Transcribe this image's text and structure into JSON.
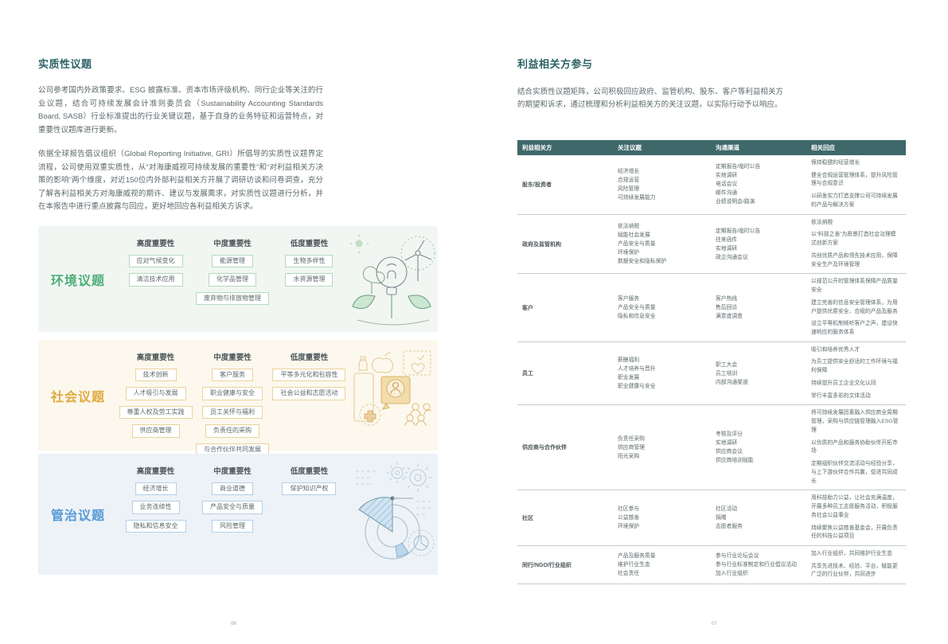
{
  "left_page": {
    "title": "实质性议题",
    "para1": "公司参考国内外政策要求、ESG 披露标准、资本市场评级机构、同行企业等关注的行业议题，结合可持续发展会计准则委员会（Sustainability Accounting Standards Board, SASB）行业标准提出的行业关键议题，基于自身的业务特征和运营特点，对重要性议题库进行更新。",
    "para2": "依据全球报告倡议组织（Global Reporting Initiative, GRI）所倡导的实质性议题界定流程，公司使用双重实质性，从“对海康威视可持续发展的重要性”和“对利益相关方决策的影响”两个维度，对近150位内外部利益相关方开展了调研访谈和问卷调查，充分了解各利益相关方对海康威视的期许、建议与发展需求，对实质性议题进行分析，并在本报告中进行重点披露与回应，更好地回应各利益相关方诉求。",
    "col_headers": [
      "高度重要性",
      "中度重要性",
      "低度重要性"
    ],
    "boxes": [
      {
        "key": "environment",
        "label": "环境议题",
        "accent": "#4caf79",
        "bg": "#f2f6f2",
        "chip_border": "#b2d9c0",
        "cols": [
          [
            "应对气候变化",
            "清洁技术应用"
          ],
          [
            "能源管理",
            "化学品管理",
            "废弃物与排放物管理"
          ],
          [
            "生物多样性",
            "水资源管理"
          ]
        ]
      },
      {
        "key": "social",
        "label": "社会议题",
        "accent": "#e0a93e",
        "bg": "#fcf8ee",
        "chip_border": "#ecd29a",
        "cols": [
          [
            "技术创新",
            "人才吸引与发展",
            "尊重人权及劳工实践",
            "供应商管理"
          ],
          [
            "客户服务",
            "职业健康与安全",
            "员工关怀与福利",
            "负责任的采购",
            "与合作伙伴共同发展"
          ],
          [
            "平等多元化和包容性",
            "社会公益和志愿活动"
          ]
        ]
      },
      {
        "key": "governance",
        "label": "管治议题",
        "accent": "#5599d8",
        "bg": "#edf2f7",
        "chip_border": "#b3cfea",
        "cols": [
          [
            "经济增长",
            "业务连续性",
            "隐私和信息安全"
          ],
          [
            "商业道德",
            "产品安全与质量",
            "风险管理"
          ],
          [
            "保护知识产权"
          ]
        ]
      }
    ],
    "page_number": "06"
  },
  "right_page": {
    "title": "利益相关方参与",
    "intro": "结合实质性议题矩阵，公司积极回应政府、监管机构、股东、客户等利益相关方的期望和诉求，通过梳理和分析利益相关方的关注议题，以实际行动予以响应。",
    "table": {
      "header_bg": "#3f686b",
      "headers": [
        "利益相关方",
        "关注议题",
        "沟通渠道",
        "相关回应"
      ],
      "rows": [
        {
          "stakeholder": "股东/投资者",
          "topics": [
            "经济增长",
            "合规运营",
            "风险管理",
            "可持续发展能力"
          ],
          "channels": [
            "定期报告/临时公告",
            "实地调研",
            "电话会议",
            "邮件沟通",
            "业绩说明会/路演"
          ],
          "responses": [
            "保持稳健的经营增长",
            "健全合规运营管理体系，提升风险管理与合规意识",
            "以研发实力打造支撑公司可持续发展的产品与解决方案"
          ],
          "min_height": 64
        },
        {
          "stakeholder": "政府及监管机构",
          "topics": [
            "依法纳税",
            "赋能社会发展",
            "产品安全与质量",
            "环境保护",
            "数据安全和隐私保护"
          ],
          "channels": [
            "定期报告/临时公告",
            "往来函件",
            "实地调研",
            "政企沟通会议"
          ],
          "responses": [
            "依法纳税",
            "以“科技之善”为愿景打造社会治理模式创新方案",
            "共创优质产品和领先技术应用，保障安全生产及环境管理"
          ],
          "min_height": 62
        },
        {
          "stakeholder": "客户",
          "topics": [
            "客户服务",
            "产品安全与质量",
            "隐私和信息安全"
          ],
          "channels": [
            "客户热线",
            "售后回访",
            "满意度调查"
          ],
          "responses": [
            "以规范公开的管理体系保障产品质量安全",
            "建立完善的信息安全管理体系，为用户提供优质安全、合规的产品及服务",
            "设立平等机制倾听客户之声，建设快速响应的服务体系"
          ],
          "min_height": 58
        },
        {
          "stakeholder": "员工",
          "topics": [
            "薪酬福利",
            "人才培养与晋升",
            "职业发展",
            "职业健康与安全"
          ],
          "channels": [
            "职工大会",
            "员工培训",
            "内部沟通渠道"
          ],
          "responses": [
            "吸引和培养优秀人才",
            "为员工提供安全舒适的工作环境与福利保障",
            "持续提升员工企业文化认同",
            "举行丰富多彩的文体活动"
          ],
          "min_height": 78
        },
        {
          "stakeholder": "供应商与合作伙伴",
          "topics": [
            "负责任采购",
            "供应商管理",
            "阳光采购"
          ],
          "channels": [
            "考核及评分",
            "实地调研",
            "供应商会议",
            "供应商培训赋能"
          ],
          "responses": [
            "将可持续发展因素融入供应商全周期管理，采购与供应链管理融入ESG管理",
            "以优质的产品和服务协助伙伴开拓市场",
            "定期组织伙伴交流活动与经验分享，与上下游伙伴合作共赢，促进共同成长"
          ],
          "min_height": 88
        },
        {
          "stakeholder": "社区",
          "topics": [
            "社区参与",
            "公益慈善",
            "环境保护"
          ],
          "channels": [
            "社区活动",
            "捐赠",
            "志愿者服务"
          ],
          "responses": [
            "用科技助力公益，让社会充满温度，开展多种员工志愿服务活动，积极服务社会公益事业",
            "持续聚焦公益慈善基金会，开展负责任的科技公益项目"
          ],
          "min_height": 62
        },
        {
          "stakeholder": "同行/NGO/行业组织",
          "topics": [
            "产品及服务质量",
            "维护行业生态",
            "社会责任"
          ],
          "channels": [
            "参与行业论坛会议",
            "参与行业标准制定和行业倡议活动",
            "加入行业组织"
          ],
          "responses": [
            "加入行业组织，共同维护行业生态",
            "共享先进技术、经验、平台，赋能更广泛的行业伙伴，共同进步"
          ],
          "min_height": 38
        }
      ]
    },
    "page_number": "07"
  }
}
